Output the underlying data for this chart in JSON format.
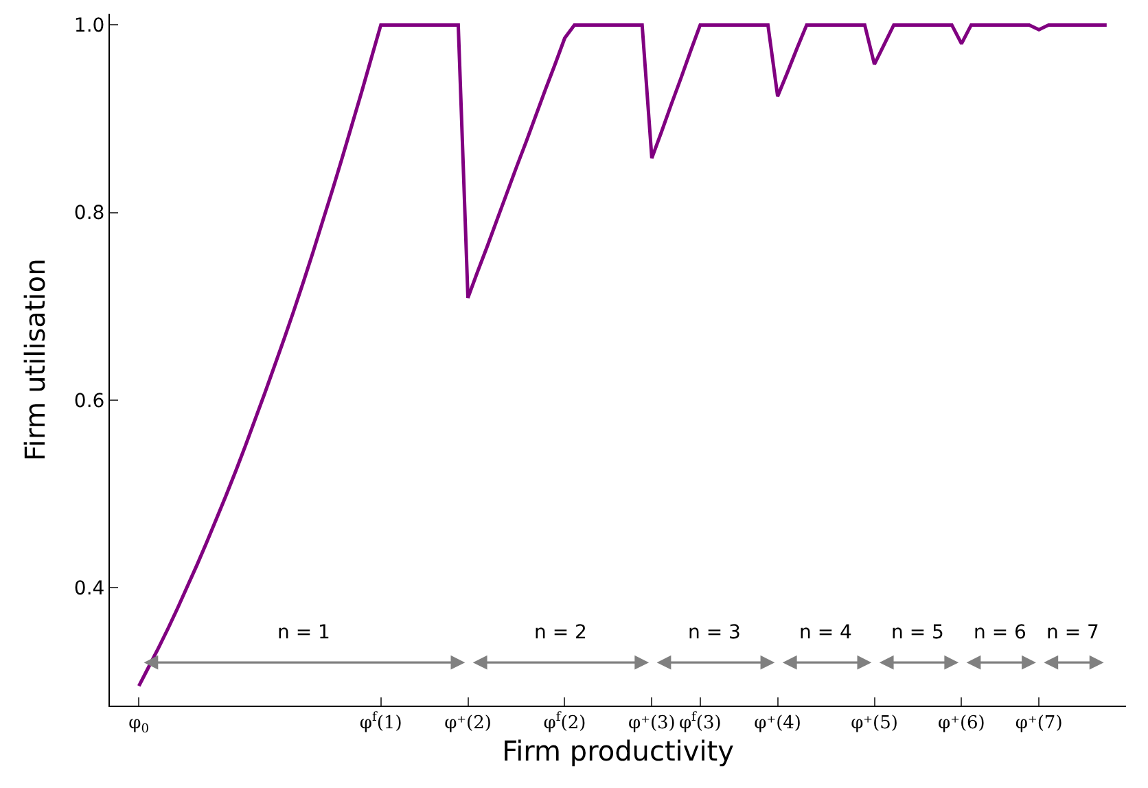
{
  "chart_data": {
    "type": "line",
    "xlabel": "Firm productivity",
    "ylabel": "Firm utilisation",
    "categories": [
      "φ$_{0}$",
      null,
      null,
      null,
      null,
      null,
      null,
      null,
      null,
      null,
      null,
      null,
      null,
      null,
      null,
      null,
      null,
      null,
      null,
      null,
      null,
      null,
      null,
      null,
      null,
      "φ$^{f}$(1)",
      null,
      null,
      null,
      null,
      null,
      null,
      null,
      null,
      "φ⁺(2)",
      null,
      null,
      null,
      null,
      null,
      null,
      null,
      null,
      null,
      "φ$^{f}$(2)",
      null,
      null,
      null,
      null,
      null,
      null,
      null,
      null,
      "φ⁺(3)",
      null,
      null,
      null,
      null,
      "φ$^{f}$(3)",
      null,
      null,
      null,
      null,
      null,
      null,
      null,
      "φ⁺(4)",
      null,
      null,
      null,
      null,
      null,
      null,
      null,
      null,
      null,
      "φ⁺(5)",
      null,
      null,
      null,
      null,
      null,
      null,
      null,
      null,
      "φ⁺(6)",
      null,
      null,
      null,
      null,
      null,
      null,
      null,
      "φ⁺(7)",
      null,
      null,
      null,
      null,
      null,
      null,
      null
    ],
    "series": [
      {
        "color": "#800080",
        "values": [
          0.295,
          0.315,
          0.335,
          0.356,
          0.378,
          0.401,
          0.424,
          0.448,
          0.473,
          0.498,
          0.524,
          0.551,
          0.579,
          0.607,
          0.636,
          0.665,
          0.695,
          0.726,
          0.758,
          0.791,
          0.824,
          0.858,
          0.893,
          0.928,
          0.964,
          1.0,
          1.0,
          1.0,
          1.0,
          1.0,
          1.0,
          1.0,
          1.0,
          1.0,
          0.709,
          0.737,
          0.764,
          0.792,
          0.82,
          0.848,
          0.875,
          0.903,
          0.931,
          0.958,
          0.986,
          1.0,
          1.0,
          1.0,
          1.0,
          1.0,
          1.0,
          1.0,
          1.0,
          0.858,
          0.886,
          0.915,
          0.943,
          0.972,
          1.0,
          1.0,
          1.0,
          1.0,
          1.0,
          1.0,
          1.0,
          1.0,
          0.924,
          0.949,
          0.975,
          1.0,
          1.0,
          1.0,
          1.0,
          1.0,
          1.0,
          1.0,
          0.958,
          0.979,
          1.0,
          1.0,
          1.0,
          1.0,
          1.0,
          1.0,
          1.0,
          0.98,
          1.0,
          1.0,
          1.0,
          1.0,
          1.0,
          1.0,
          1.0,
          0.995,
          1.0,
          1.0,
          1.0,
          1.0,
          1.0,
          1.0,
          1.0
        ]
      }
    ],
    "ylim": [
      0.274,
      1.012
    ],
    "yticks": [
      0.4,
      0.6,
      0.8,
      {
        "value": 1.0,
        "label": "1.0"
      }
    ],
    "annotations": [
      "n = 1",
      "n = 2",
      "n = 3",
      "n = 4",
      "n = 5",
      "n = 6",
      "n = 7"
    ],
    "line_style": "solid",
    "marker": "none"
  }
}
